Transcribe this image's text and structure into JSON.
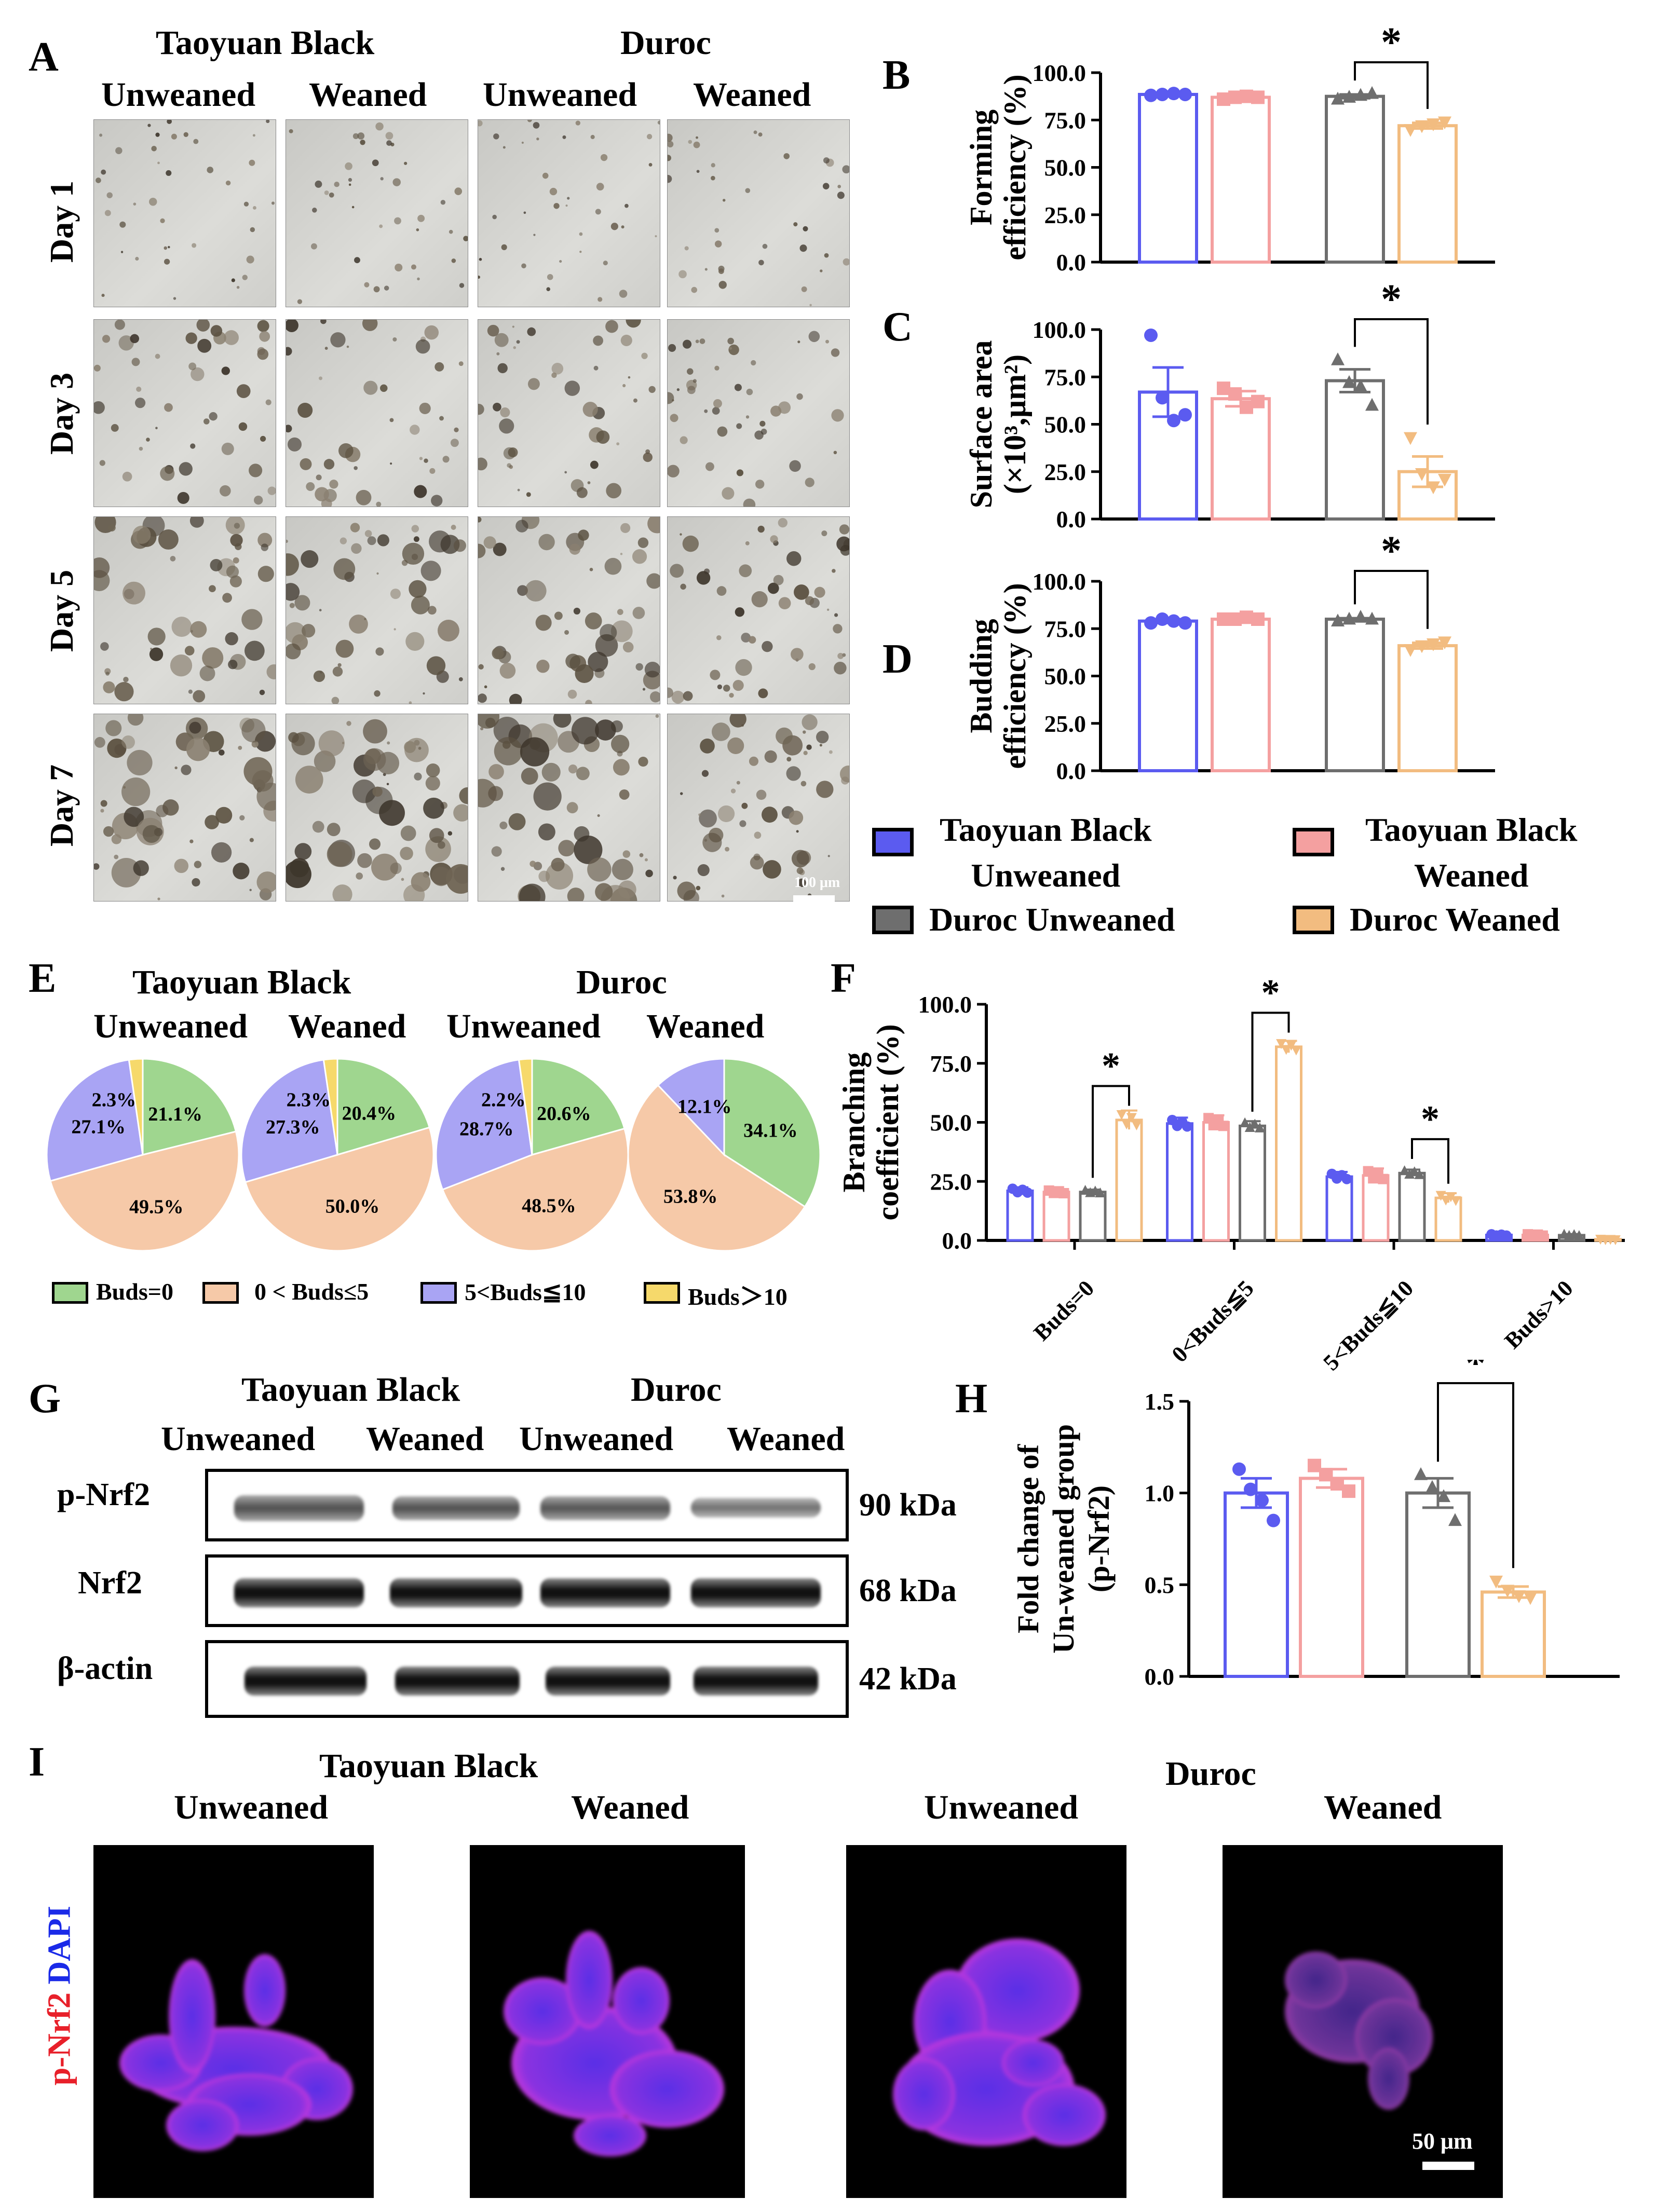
{
  "panels": {
    "A": "A",
    "B": "B",
    "C": "C",
    "D": "D",
    "E": "E",
    "F": "F",
    "G": "G",
    "H": "H",
    "I": "I"
  },
  "groups": {
    "taoyuan_black": "Taoyuan Black",
    "duroc": "Duroc",
    "unweaned": "Unweaned",
    "weaned": "Weaned"
  },
  "panel_a": {
    "days": [
      "Day 1",
      "Day 3",
      "Day 5",
      "Day 7"
    ],
    "scale_bar": "100 μm"
  },
  "legend": {
    "tb_unweaned": "Taoyuan Black\nUnweaned",
    "tb_weaned": "Taoyuan Black\nWeaned",
    "duroc_unweaned": "Duroc Unweaned",
    "duroc_weaned": "Duroc Weaned"
  },
  "colors": {
    "tb_unweaned": "#5b5bf0",
    "tb_weaned": "#f4a0a0",
    "duroc_unweaned": "#6e6e6e",
    "duroc_weaned": "#f2bc80",
    "pie_buds0": "#9fd68f",
    "pie_0to5": "#f6c9a8",
    "pie_5to10": "#a9a4f4",
    "pie_gt10": "#f6d96b"
  },
  "chart_data": [
    {
      "panel": "B",
      "type": "bar",
      "ylabel_line1": "Forming",
      "ylabel_line2": "efficiency (%)",
      "ylim": [
        0,
        100
      ],
      "yticks": [
        "0.0",
        "25.0",
        "50.0",
        "75.0",
        "100.0"
      ],
      "categories": [
        "Taoyuan Black Unweaned",
        "Taoyuan Black Weaned",
        "Duroc Unweaned",
        "Duroc Weaned"
      ],
      "values": [
        88.5,
        87,
        87.5,
        72
      ],
      "sem": [
        0.5,
        0.8,
        1.0,
        1.5
      ],
      "points": [
        [
          88,
          88.5,
          89,
          88.5
        ],
        [
          86,
          87,
          87.5,
          87
        ],
        [
          86,
          87,
          88,
          89
        ],
        [
          70,
          72,
          73,
          74
        ]
      ],
      "significance": "*"
    },
    {
      "panel": "C",
      "type": "bar",
      "ylabel_line1": "Surface area",
      "ylabel_line2": "(×10³,μm²)",
      "ylim": [
        0,
        100
      ],
      "yticks": [
        "0.0",
        "25.0",
        "50.0",
        "75.0",
        "100.0"
      ],
      "categories": [
        "Taoyuan Black Unweaned",
        "Taoyuan Black Weaned",
        "Duroc Unweaned",
        "Duroc Weaned"
      ],
      "values": [
        67,
        63.5,
        73,
        25
      ],
      "sem": [
        13,
        4,
        6,
        8
      ],
      "points": [
        [
          97,
          64,
          52,
          55
        ],
        [
          69,
          66,
          59,
          62
        ],
        [
          84,
          72,
          70,
          60
        ],
        [
          43,
          24,
          17,
          21
        ]
      ],
      "significance": "*"
    },
    {
      "panel": "D",
      "type": "bar",
      "ylabel_line1": "Budding",
      "ylabel_line2": "efficiency (%)",
      "ylim": [
        0,
        100
      ],
      "yticks": [
        "0.0",
        "25.0",
        "50.0",
        "75.0",
        "100.0"
      ],
      "categories": [
        "Taoyuan Black Unweaned",
        "Taoyuan Black Weaned",
        "Duroc Unweaned",
        "Duroc Weaned"
      ],
      "values": [
        79,
        80,
        80,
        66
      ],
      "sem": [
        1,
        0.5,
        0.5,
        1.5
      ],
      "points": [
        [
          78,
          80,
          79,
          78
        ],
        [
          80,
          80,
          81,
          80
        ],
        [
          79,
          80,
          81,
          80
        ],
        [
          64,
          66,
          67,
          68
        ]
      ],
      "significance": "*"
    },
    {
      "panel": "E",
      "type": "pie",
      "legend": [
        "Buds=0",
        "0 < Buds≤5",
        "5<Buds≦10",
        "Buds＞10"
      ],
      "pies": [
        {
          "group": "Taoyuan Black Unweaned",
          "values": [
            21.1,
            49.5,
            27.1,
            2.3
          ],
          "labels": [
            "21.1%",
            "49.5%",
            "27.1%",
            "2.3%"
          ]
        },
        {
          "group": "Taoyuan Black Weaned",
          "values": [
            20.4,
            50.0,
            27.3,
            2.3
          ],
          "labels": [
            "20.4%",
            "50.0%",
            "27.3%",
            "2.3%"
          ]
        },
        {
          "group": "Duroc Unweaned",
          "values": [
            20.6,
            48.5,
            28.7,
            2.2
          ],
          "labels": [
            "20.6%",
            "48.5%",
            "28.7%",
            "2.2%"
          ]
        },
        {
          "group": "Duroc Weaned",
          "values": [
            34.1,
            53.8,
            12.1,
            0
          ],
          "labels": [
            "34.1%",
            "53.8%",
            "12.1%",
            ""
          ]
        }
      ]
    },
    {
      "panel": "F",
      "type": "bar",
      "ylabel_line1": "Branching",
      "ylabel_line2": "coefficient (%)",
      "ylim": [
        0,
        100
      ],
      "yticks": [
        "0.0",
        "25.0",
        "50.0",
        "75.0",
        "100.0"
      ],
      "categories": [
        "Buds=0",
        "0<Buds≦5",
        "5<Buds≦10",
        "Buds>10"
      ],
      "series": [
        {
          "name": "Taoyuan Black Unweaned",
          "values": [
            21,
            49.5,
            27,
            2.3
          ]
        },
        {
          "name": "Taoyuan Black Weaned",
          "values": [
            20.5,
            50,
            27.5,
            2.3
          ]
        },
        {
          "name": "Duroc Unweaned",
          "values": [
            20.5,
            48.5,
            28.5,
            2.2
          ]
        },
        {
          "name": "Duroc Weaned",
          "values": [
            51,
            82,
            18,
            0.5
          ]
        }
      ],
      "sem": [
        [
          1.5,
          2.5,
          2,
          0.5
        ],
        [
          1,
          3,
          3,
          0.5
        ],
        [
          1,
          2,
          1.5,
          0.5
        ],
        [
          4,
          2.5,
          2,
          0.2
        ]
      ],
      "significance": [
        "*",
        "*",
        "*"
      ]
    },
    {
      "panel": "H",
      "type": "bar",
      "ylabel_line1": "Fold change of",
      "ylabel_line2": "Un-weaned group",
      "ylabel_line3": "(p-Nrf2)",
      "ylim": [
        0,
        1.5
      ],
      "yticks": [
        "0.0",
        "0.5",
        "1.0",
        "1.5"
      ],
      "categories": [
        "Taoyuan Black Unweaned",
        "Taoyuan Black Weaned",
        "Duroc Unweaned",
        "Duroc Weaned"
      ],
      "values": [
        1.0,
        1.08,
        1.0,
        0.46
      ],
      "sem": [
        0.08,
        0.05,
        0.08,
        0.03
      ],
      "points": [
        [
          1.13,
          1.02,
          0.96,
          0.85
        ],
        [
          1.15,
          1.1,
          1.05,
          1.01
        ],
        [
          1.1,
          1.03,
          0.98,
          0.85
        ],
        [
          0.52,
          0.47,
          0.44,
          0.43
        ]
      ],
      "significance": "*"
    }
  ],
  "panel_g": {
    "rows": [
      {
        "label": "p-Nrf2",
        "kda": "90 kDa"
      },
      {
        "label": "Nrf2",
        "kda": "68 kDa"
      },
      {
        "label": "β-actin",
        "kda": "42 kDa"
      }
    ]
  },
  "panel_i": {
    "stain_red": "p-Nrf2",
    "stain_blue": "DAPI",
    "scale_bar": "50 μm"
  }
}
